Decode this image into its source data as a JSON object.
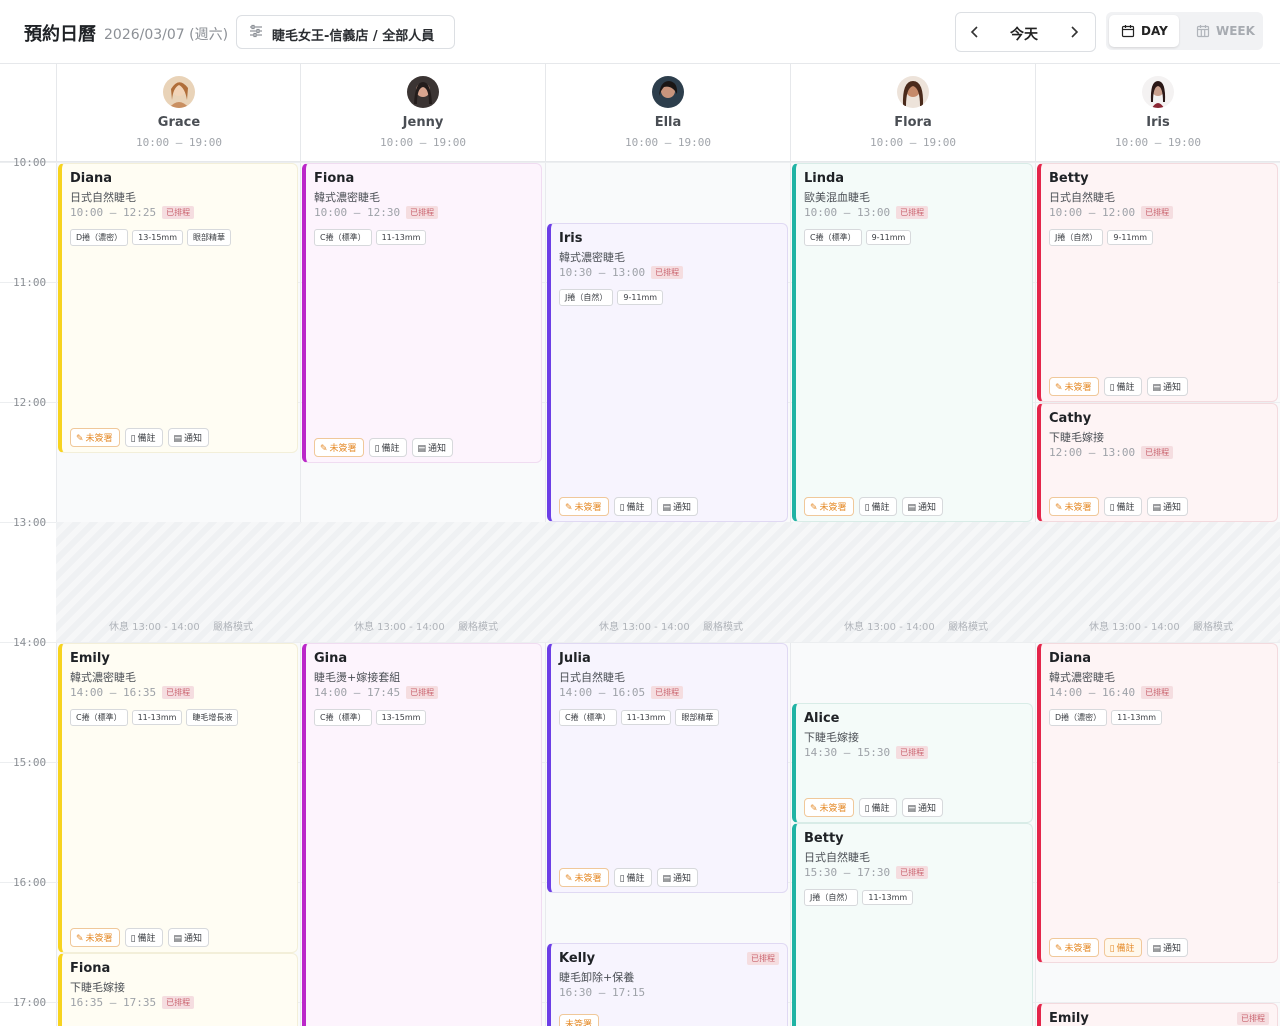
{
  "header": {
    "title": "預約日曆",
    "date": "2026/03/07 (週六)",
    "store_filter": "睫毛女王-信義店 / 全部人員",
    "today_label": "今天",
    "view_day": "DAY",
    "view_week": "WEEK"
  },
  "staff": [
    {
      "name": "Grace",
      "hours": "10:00 – 19:00"
    },
    {
      "name": "Jenny",
      "hours": "10:00 – 19:00"
    },
    {
      "name": "Ella",
      "hours": "10:00 – 19:00"
    },
    {
      "name": "Flora",
      "hours": "10:00 – 19:00"
    },
    {
      "name": "Iris",
      "hours": "10:00 – 19:00"
    }
  ],
  "time_labels": [
    "10:00",
    "11:00",
    "12:00",
    "13:00",
    "14:00",
    "15:00",
    "16:00",
    "17:00"
  ],
  "break": {
    "label": "休息 13:00 - 14:00",
    "mode": "嚴格模式"
  },
  "action_labels": {
    "sign": "未簽署",
    "note": "備註",
    "notify": "通知",
    "unsigned_short": "未簽署"
  },
  "appointments": [
    {
      "customer": "Diana",
      "service": "日式自然睫毛",
      "time": "10:00 – 12:25",
      "status": "已排程",
      "tags": [
        "D捲（濃密）",
        "13-15mm",
        "眼部精華"
      ]
    },
    {
      "customer": "Emily",
      "service": "韓式濃密睫毛",
      "time": "14:00 – 16:35",
      "status": "已排程",
      "tags": [
        "C捲（標準）",
        "11-13mm",
        "睫毛增長液"
      ]
    },
    {
      "customer": "Fiona",
      "service": "下睫毛嫁接",
      "time": "16:35 – 17:35",
      "status": "已排程",
      "tags": []
    },
    {
      "customer": "Fiona",
      "service": "韓式濃密睫毛",
      "time": "10:00 – 12:30",
      "status": "已排程",
      "tags": [
        "C捲（標準）",
        "11-13mm"
      ]
    },
    {
      "customer": "Gina",
      "service": "睫毛燙+嫁接套組",
      "time": "14:00 – 17:45",
      "status": "已排程",
      "tags": [
        "C捲（標準）",
        "13-15mm"
      ]
    },
    {
      "customer": "Iris",
      "service": "韓式濃密睫毛",
      "time": "10:30 – 13:00",
      "status": "已排程",
      "tags": [
        "J捲（自然）",
        "9-11mm"
      ]
    },
    {
      "customer": "Julia",
      "service": "日式自然睫毛",
      "time": "14:00 – 16:05",
      "status": "已排程",
      "tags": [
        "C捲（標準）",
        "11-13mm",
        "眼部精華"
      ]
    },
    {
      "customer": "Kelly",
      "service": "睫毛卸除+保養",
      "time": "16:30 – 17:15",
      "status": "已排程",
      "tags": []
    },
    {
      "customer": "Linda",
      "service": "歐美混血睫毛",
      "time": "10:00 – 13:00",
      "status": "已排程",
      "tags": [
        "C捲（標準）",
        "9-11mm"
      ]
    },
    {
      "customer": "Alice",
      "service": "下睫毛嫁接",
      "time": "14:30 – 15:30",
      "status": "已排程",
      "tags": []
    },
    {
      "customer": "Betty",
      "service": "日式自然睫毛",
      "time": "15:30 – 17:30",
      "status": "已排程",
      "tags": [
        "J捲（自然）",
        "11-13mm"
      ]
    },
    {
      "customer": "Betty",
      "service": "日式自然睫毛",
      "time": "10:00 – 12:00",
      "status": "已排程",
      "tags": [
        "J捲（自然）",
        "9-11mm"
      ]
    },
    {
      "customer": "Cathy",
      "service": "下睫毛嫁接",
      "time": "12:00 – 13:00",
      "status": "已排程",
      "tags": []
    },
    {
      "customer": "Diana",
      "service": "韓式濃密睫毛",
      "time": "14:00 – 16:40",
      "status": "已排程",
      "tags": [
        "D捲（濃密）",
        "11-13mm"
      ]
    },
    {
      "customer": "Emily",
      "service": "",
      "time": "",
      "status": "已排程",
      "tags": []
    }
  ]
}
